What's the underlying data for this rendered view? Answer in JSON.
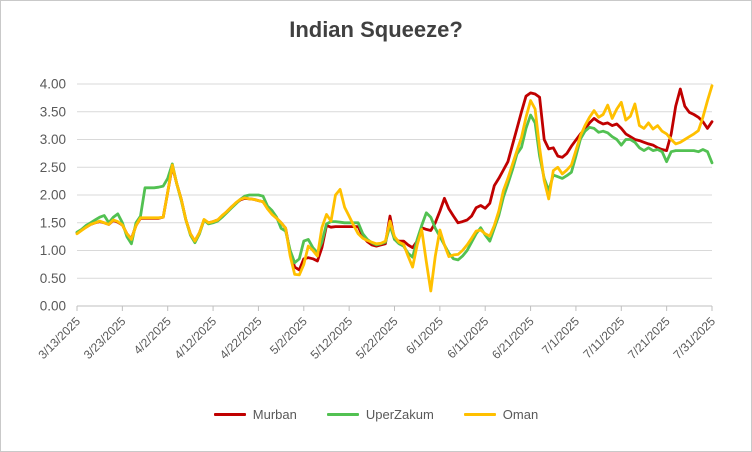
{
  "title": "Indian Squeeze?",
  "colors": {
    "title_text": "#404040",
    "axis_text": "#595959",
    "gridline": "#D9D9D9",
    "axis_line": "#BFBFBF",
    "background": "#FFFFFF",
    "murban": "#C00000",
    "uperzakum": "#52C152",
    "oman": "#FFC000"
  },
  "chart_data": {
    "type": "line",
    "title": "Indian Squeeze?",
    "xlabel": "",
    "ylabel": "",
    "ylim": [
      0,
      4
    ],
    "grid": "horizontal",
    "legend_position": "bottom",
    "x_unit": "daily, 3/13/2025 through 7/31/2025, index 0-140",
    "x_tick_labels": [
      "3/13/2025",
      "3/23/2025",
      "4/2/2025",
      "4/12/2025",
      "4/22/2025",
      "5/2/2025",
      "5/12/2025",
      "5/22/2025",
      "6/1/2025",
      "6/11/2025",
      "6/21/2025",
      "7/1/2025",
      "7/11/2025",
      "7/21/2025",
      "7/31/2025"
    ],
    "x_tick_day_index": [
      0,
      10,
      20,
      30,
      40,
      50,
      60,
      70,
      80,
      90,
      100,
      110,
      120,
      130,
      140
    ],
    "y_tick_labels": [
      "0.00",
      "0.50",
      "1.00",
      "1.50",
      "2.00",
      "2.50",
      "3.00",
      "3.50",
      "4.00"
    ],
    "series": [
      {
        "name": "Murban",
        "color": "#C00000",
        "values": [
          1.32,
          1.37,
          1.42,
          1.47,
          1.5,
          1.52,
          1.5,
          1.47,
          1.54,
          1.51,
          1.46,
          1.3,
          1.21,
          1.45,
          1.58,
          1.58,
          1.58,
          1.58,
          1.58,
          1.6,
          2.05,
          2.52,
          2.2,
          1.92,
          1.55,
          1.3,
          1.17,
          1.32,
          1.55,
          1.5,
          1.52,
          1.55,
          1.62,
          1.7,
          1.78,
          1.85,
          1.91,
          1.94,
          1.93,
          1.92,
          1.9,
          1.88,
          1.76,
          1.66,
          1.58,
          1.5,
          1.4,
          0.95,
          0.7,
          0.65,
          0.85,
          0.87,
          0.85,
          0.81,
          1.05,
          1.45,
          1.42,
          1.43,
          1.43,
          1.43,
          1.43,
          1.43,
          1.43,
          1.25,
          1.16,
          1.1,
          1.08,
          1.1,
          1.12,
          1.62,
          1.2,
          1.17,
          1.17,
          1.1,
          1.05,
          1.17,
          1.41,
          1.38,
          1.36,
          1.5,
          1.71,
          1.94,
          1.75,
          1.62,
          1.5,
          1.52,
          1.55,
          1.62,
          1.77,
          1.81,
          1.76,
          1.85,
          2.17,
          2.3,
          2.45,
          2.6,
          2.9,
          3.2,
          3.5,
          3.78,
          3.84,
          3.82,
          3.76,
          3.0,
          2.83,
          2.85,
          2.7,
          2.68,
          2.75,
          2.88,
          2.99,
          3.1,
          3.19,
          3.3,
          3.38,
          3.32,
          3.28,
          3.3,
          3.25,
          3.28,
          3.2,
          3.1,
          3.05,
          3.0,
          2.98,
          2.95,
          2.92,
          2.9,
          2.85,
          2.82,
          2.8,
          3.1,
          3.6,
          3.91,
          3.6,
          3.49,
          3.45,
          3.4,
          3.32,
          3.2,
          3.32
        ]
      },
      {
        "name": "UperZakum",
        "color": "#52C152",
        "values": [
          1.33,
          1.38,
          1.45,
          1.5,
          1.55,
          1.6,
          1.63,
          1.5,
          1.6,
          1.66,
          1.5,
          1.25,
          1.12,
          1.5,
          1.62,
          2.13,
          2.13,
          2.13,
          2.14,
          2.16,
          2.3,
          2.56,
          2.2,
          1.9,
          1.55,
          1.28,
          1.14,
          1.3,
          1.55,
          1.48,
          1.5,
          1.53,
          1.6,
          1.68,
          1.76,
          1.84,
          1.92,
          1.98,
          2.0,
          2.0,
          2.0,
          1.98,
          1.8,
          1.72,
          1.6,
          1.4,
          1.35,
          1.0,
          0.78,
          0.85,
          1.17,
          1.2,
          1.05,
          0.96,
          1.15,
          1.48,
          1.52,
          1.52,
          1.51,
          1.5,
          1.5,
          1.5,
          1.5,
          1.3,
          1.2,
          1.14,
          1.1,
          1.12,
          1.15,
          1.45,
          1.2,
          1.12,
          1.08,
          0.95,
          0.88,
          1.2,
          1.45,
          1.68,
          1.6,
          1.4,
          1.25,
          1.1,
          0.95,
          0.85,
          0.83,
          0.9,
          1.0,
          1.15,
          1.3,
          1.41,
          1.28,
          1.17,
          1.4,
          1.63,
          1.96,
          2.2,
          2.45,
          2.74,
          2.86,
          3.2,
          3.44,
          3.3,
          2.7,
          2.3,
          2.08,
          2.36,
          2.33,
          2.3,
          2.35,
          2.41,
          2.7,
          3.01,
          3.15,
          3.22,
          3.2,
          3.13,
          3.15,
          3.12,
          3.05,
          3.0,
          2.9,
          3.0,
          3.0,
          2.95,
          2.85,
          2.8,
          2.85,
          2.8,
          2.82,
          2.78,
          2.6,
          2.78,
          2.8,
          2.8,
          2.8,
          2.8,
          2.8,
          2.78,
          2.82,
          2.78,
          2.58
        ]
      },
      {
        "name": "Oman",
        "color": "#FFC000",
        "values": [
          1.3,
          1.36,
          1.42,
          1.47,
          1.5,
          1.53,
          1.5,
          1.47,
          1.55,
          1.52,
          1.46,
          1.3,
          1.2,
          1.45,
          1.59,
          1.59,
          1.59,
          1.59,
          1.59,
          1.6,
          2.05,
          2.54,
          2.2,
          1.92,
          1.55,
          1.3,
          1.17,
          1.32,
          1.56,
          1.5,
          1.52,
          1.55,
          1.63,
          1.7,
          1.78,
          1.86,
          1.92,
          1.95,
          1.93,
          1.92,
          1.9,
          1.88,
          1.75,
          1.65,
          1.58,
          1.5,
          1.4,
          0.9,
          0.57,
          0.56,
          0.75,
          1.08,
          1.0,
          0.9,
          1.41,
          1.65,
          1.53,
          2.0,
          2.1,
          1.78,
          1.62,
          1.45,
          1.3,
          1.22,
          1.18,
          1.15,
          1.12,
          1.13,
          1.17,
          1.53,
          1.25,
          1.15,
          1.11,
          0.9,
          0.7,
          1.1,
          1.38,
          0.8,
          0.27,
          0.9,
          1.37,
          1.1,
          0.89,
          0.92,
          0.93,
          1.0,
          1.1,
          1.22,
          1.35,
          1.37,
          1.3,
          1.26,
          1.45,
          1.71,
          2.08,
          2.3,
          2.55,
          2.8,
          3.04,
          3.4,
          3.7,
          3.55,
          2.85,
          2.26,
          1.93,
          2.44,
          2.5,
          2.38,
          2.45,
          2.54,
          2.8,
          3.07,
          3.25,
          3.4,
          3.52,
          3.4,
          3.45,
          3.62,
          3.38,
          3.55,
          3.67,
          3.35,
          3.42,
          3.64,
          3.25,
          3.2,
          3.3,
          3.19,
          3.25,
          3.15,
          3.1,
          3.0,
          2.92,
          2.95,
          3.0,
          3.05,
          3.1,
          3.16,
          3.4,
          3.7,
          3.97
        ]
      }
    ]
  }
}
